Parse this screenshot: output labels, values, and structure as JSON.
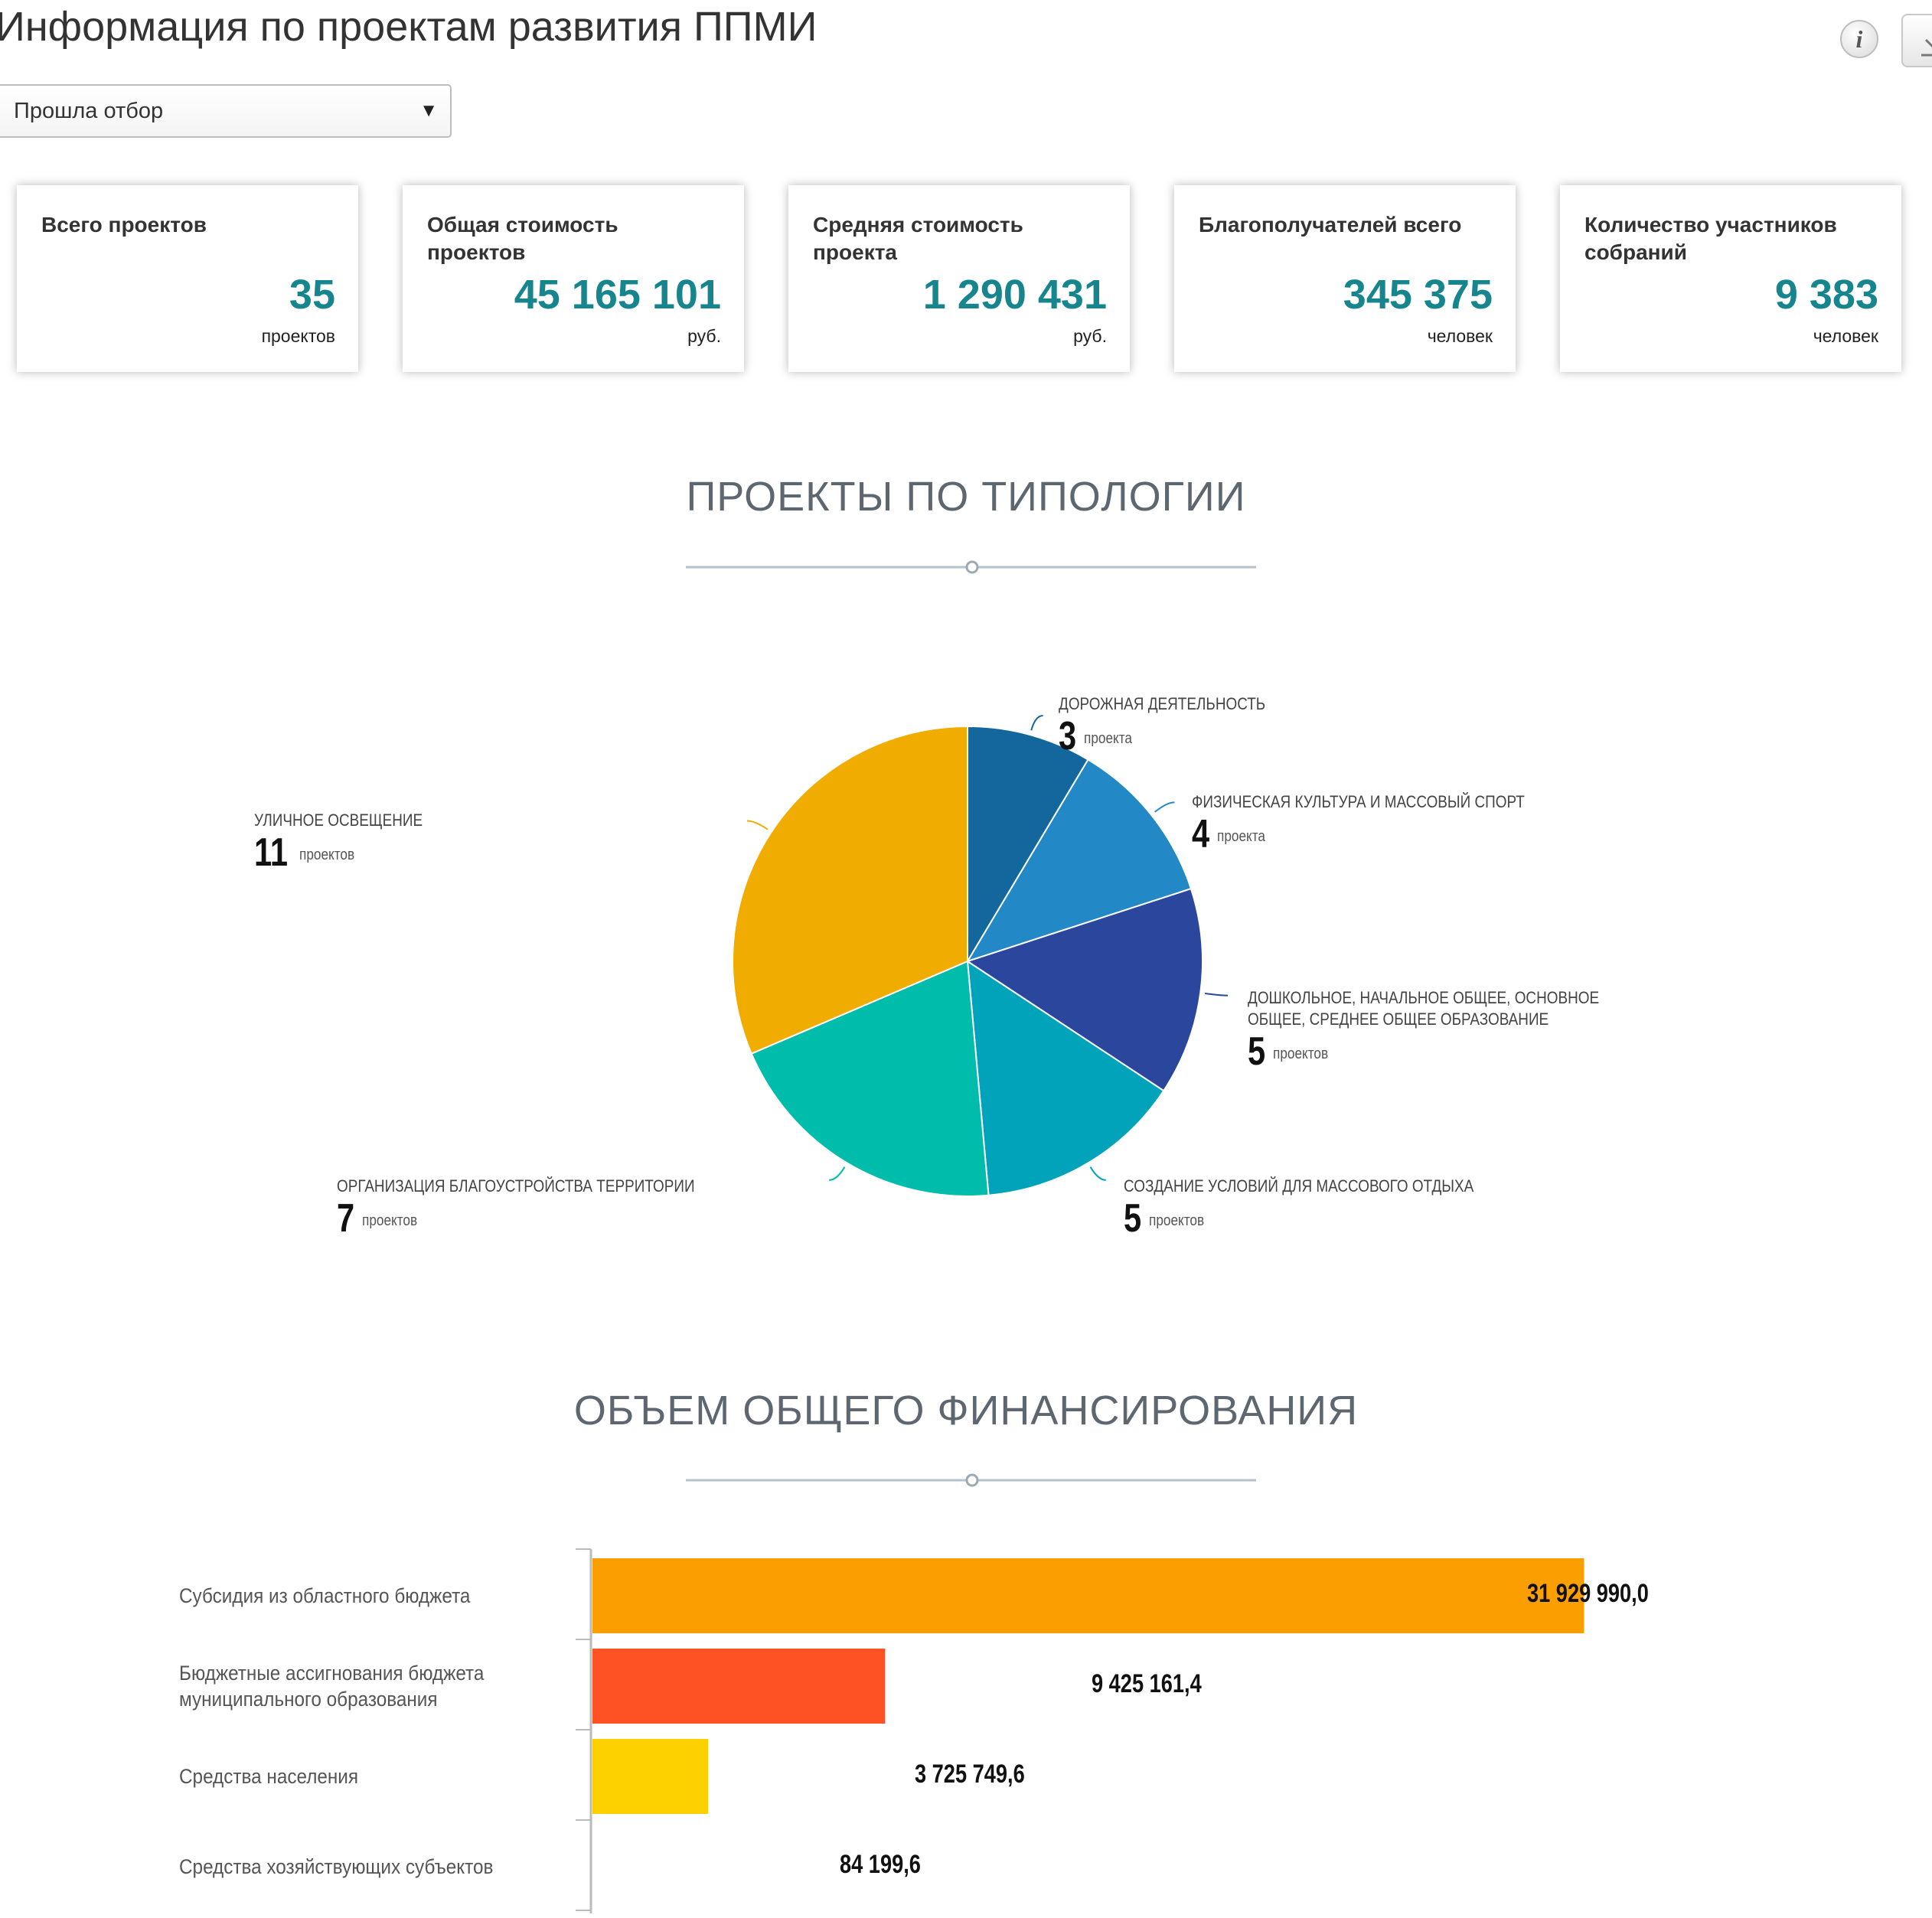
{
  "header": {
    "title": "Информация по проектам развития ППМИ",
    "info_icon": "info-icon",
    "download_icon": "download-icon"
  },
  "filter": {
    "selected": "Прошла отбор"
  },
  "kpis": [
    {
      "label": "Всего проектов",
      "value": "35",
      "unit": "проектов"
    },
    {
      "label": "Общая стоимость проектов",
      "value": "45 165 101",
      "unit": "руб."
    },
    {
      "label": "Средняя стоимость проекта",
      "value": "1 290 431",
      "unit": "руб."
    },
    {
      "label": "Благополучателей всего",
      "value": "345 375",
      "unit": "человек"
    },
    {
      "label": "Количество участников собраний",
      "value": "9 383",
      "unit": "человек"
    }
  ],
  "sections": {
    "typology_title": "ПРОЕКТЫ ПО ТИПОЛОГИИ",
    "financing_title": "ОБЪЕМ ОБЩЕГО ФИНАНСИРОВАНИЯ"
  },
  "chart_data": [
    {
      "type": "pie",
      "title": "ПРОЕКТЫ ПО ТИПОЛОГИИ",
      "slices": [
        {
          "label": "ДОРОЖНАЯ ДЕЯТЕЛЬНОСТЬ",
          "value": 3,
          "unit": "проекта",
          "color": "#13679c"
        },
        {
          "label": "ФИЗИЧЕСКАЯ КУЛЬТУРА И МАССОВЫЙ СПОРТ",
          "value": 4,
          "unit": "проекта",
          "color": "#2289c6"
        },
        {
          "label": "ДОШКОЛЬНОЕ, НАЧАЛЬНОЕ ОБЩЕЕ, ОСНОВНОЕ ОБЩЕЕ, СРЕДНЕЕ ОБЩЕЕ ОБРАЗОВАНИЕ",
          "value": 5,
          "unit": "проектов",
          "color": "#2a469d"
        },
        {
          "label": "СОЗДАНИЕ УСЛОВИЙ ДЛЯ МАССОВОГО ОТДЫХА",
          "value": 5,
          "unit": "проектов",
          "color": "#00a3b9"
        },
        {
          "label": "ОРГАНИЗАЦИЯ БЛАГОУСТРОЙСТВА ТЕРРИТОРИИ",
          "value": 7,
          "unit": "проектов",
          "color": "#00bcab"
        },
        {
          "label": "УЛИЧНОЕ ОСВЕЩЕНИЕ",
          "value": 11,
          "unit": "проектов",
          "color": "#f1ac00"
        }
      ],
      "legend": "labels-outside"
    },
    {
      "type": "bar",
      "title": "ОБЪЕМ ОБЩЕГО ФИНАНСИРОВАНИЯ",
      "orientation": "horizontal",
      "categories": [
        "Субсидия из областного бюджета",
        "Бюджетные ассигнования бюджета муниципального образования",
        "Средства населения",
        "Средства хозяйствующих субъектов"
      ],
      "values": [
        31929990.0,
        9425161.4,
        3725749.6,
        84199.6
      ],
      "value_labels": [
        "31 929 990,0",
        "9 425 161,4",
        "3 725 749,6",
        "84 199,6"
      ],
      "colors": [
        "#fb9f00",
        "#ff5224",
        "#fdd000",
        "#ffffff"
      ],
      "xlim": [
        0,
        35000000
      ],
      "grid": false
    }
  ]
}
